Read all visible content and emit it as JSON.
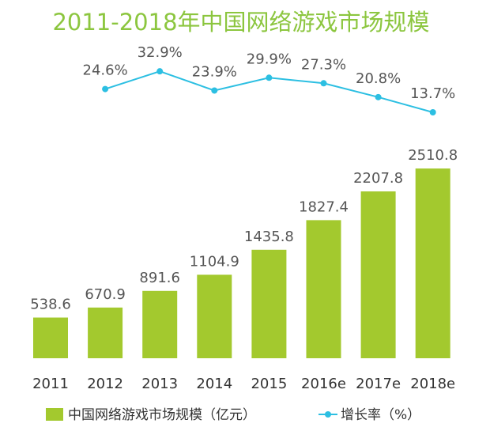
{
  "chart_data": {
    "type": "bar",
    "title": "2011-2018年中国网络游戏市场规模",
    "categories": [
      "2011",
      "2012",
      "2013",
      "2014",
      "2015",
      "2016e",
      "2017e",
      "2018e"
    ],
    "series": [
      {
        "name": "中国网络游戏市场规模（亿元）",
        "type": "bar",
        "color": "#a3c92e",
        "values": [
          538.6,
          670.9,
          891.6,
          1104.9,
          1435.8,
          1827.4,
          2207.8,
          2510.8
        ]
      },
      {
        "name": "增长率（%）",
        "type": "line",
        "axis": "y2",
        "color": "#2cbfe2",
        "values": [
          null,
          24.6,
          32.9,
          23.9,
          29.9,
          27.3,
          20.8,
          13.7
        ],
        "value_labels": [
          null,
          "24.6%",
          "32.9%",
          "23.9%",
          "29.9%",
          "27.3%",
          "20.8%",
          "13.7%"
        ]
      }
    ],
    "ylim": [
      0,
      2700
    ],
    "y2lim": [
      0,
      40
    ]
  }
}
